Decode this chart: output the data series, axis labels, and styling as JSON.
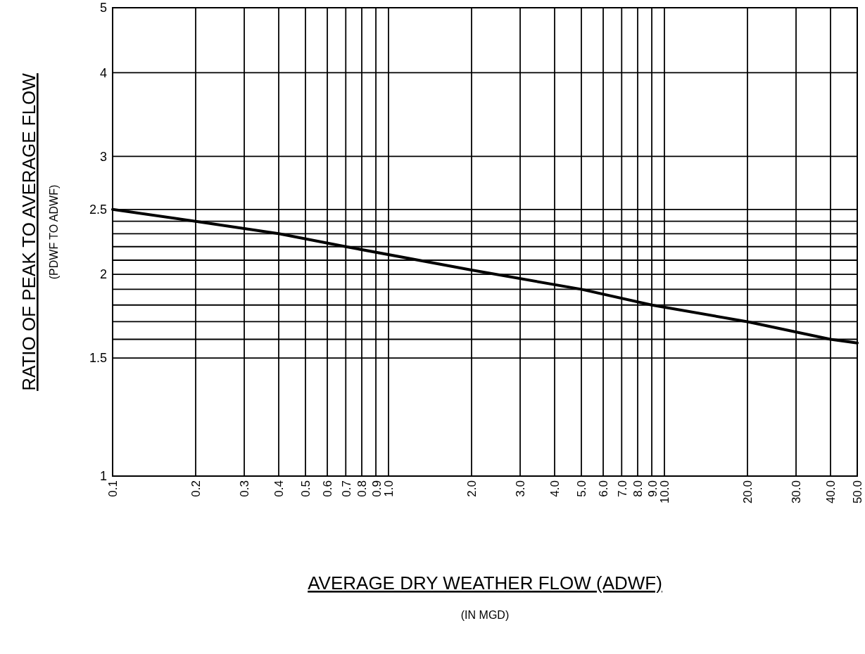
{
  "chart_data": {
    "type": "line",
    "xlabel": "AVERAGE DRY WEATHER FLOW (ADWF)",
    "ylabel": "RATIO OF PEAK TO AVERAGE FLOW",
    "annotations": [
      "(PDWF TO ADWF)",
      "(IN MGD)"
    ],
    "log": "xy",
    "grid": true,
    "marker": "none",
    "line_style": "solid",
    "xlim": [
      0.1,
      50
    ],
    "ylim": [
      1,
      5
    ],
    "xticks": [
      {
        "value": 0.1,
        "label": "0.1"
      },
      {
        "value": 0.2,
        "label": "0.2"
      },
      {
        "value": 0.3,
        "label": "0.3"
      },
      {
        "value": 0.4,
        "label": "0.4"
      },
      {
        "value": 0.5,
        "label": "0.5"
      },
      {
        "value": 0.6,
        "label": "0.6"
      },
      {
        "value": 0.7,
        "label": "0.7"
      },
      {
        "value": 0.8,
        "label": "0.8"
      },
      {
        "value": 0.9,
        "label": "0.9"
      },
      {
        "value": 1,
        "label": "1.0"
      },
      {
        "value": 2,
        "label": "2.0"
      },
      {
        "value": 3,
        "label": "3.0"
      },
      {
        "value": 4,
        "label": "4.0"
      },
      {
        "value": 5,
        "label": "5.0"
      },
      {
        "value": 6,
        "label": "6.0"
      },
      {
        "value": 7,
        "label": "7.0"
      },
      {
        "value": 8,
        "label": "8.0"
      },
      {
        "value": 9,
        "label": "9.0"
      },
      {
        "value": 10,
        "label": "10.0"
      },
      {
        "value": 20,
        "label": "20.0"
      },
      {
        "value": 30,
        "label": "30.0"
      },
      {
        "value": 40,
        "label": "40.0"
      },
      {
        "value": 50,
        "label": "50.0"
      }
    ],
    "yticks": [
      1,
      1.5,
      {
        "value": 1.6,
        "label": null
      },
      {
        "value": 1.7,
        "label": null
      },
      {
        "value": 1.8,
        "label": null
      },
      {
        "value": 1.9,
        "label": null
      },
      2,
      {
        "value": 2.1,
        "label": null
      },
      {
        "value": 2.2,
        "label": null
      },
      {
        "value": 2.3,
        "label": null
      },
      {
        "value": 2.4,
        "label": null
      },
      2.5,
      3,
      4,
      5
    ],
    "series": [
      {
        "color": "#000000",
        "x": [
          0.1,
          0.2,
          0.4,
          0.7,
          2,
          5,
          9,
          20,
          40,
          50
        ],
        "values": [
          2.5,
          2.4,
          2.3,
          2.2,
          2.03,
          1.9,
          1.8,
          1.7,
          1.6,
          1.58
        ]
      }
    ]
  }
}
